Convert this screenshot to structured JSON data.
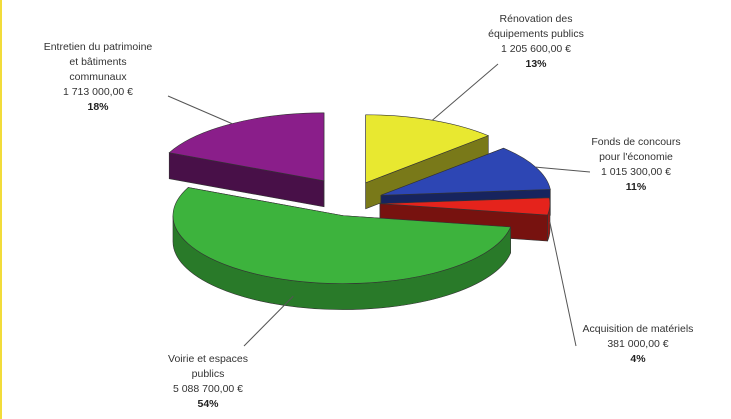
{
  "chart_data": {
    "type": "pie",
    "style": "3d-exploded",
    "title": "",
    "legend": "none",
    "slices": [
      {
        "label_lines": [
          "Rénovation des",
          "équipements publics"
        ],
        "amount": "1 205 600,00 €",
        "percent_label": "13%",
        "value": 1205600,
        "color": "#e8e830"
      },
      {
        "label_lines": [
          "Fonds de concours",
          "pour l'économie"
        ],
        "amount": "1 015 300,00 €",
        "percent_label": "11%",
        "value": 1015300,
        "color": "#2d46b4"
      },
      {
        "label_lines": [
          "Acquisition de matériels"
        ],
        "amount": "381 000,00 €",
        "percent_label": "4%",
        "value": 381000,
        "color": "#e5231c"
      },
      {
        "label_lines": [
          "Voirie et espaces",
          "publics"
        ],
        "amount": "5 088 700,00 €",
        "percent_label": "54%",
        "value": 5088700,
        "color": "#3db33d"
      },
      {
        "label_lines": [
          "Entretien du patrimoine",
          "et bâtiments",
          "communaux"
        ],
        "amount": "1 713 000,00 €",
        "percent_label": "18%",
        "value": 1713000,
        "color": "#8a1e8a"
      }
    ]
  }
}
